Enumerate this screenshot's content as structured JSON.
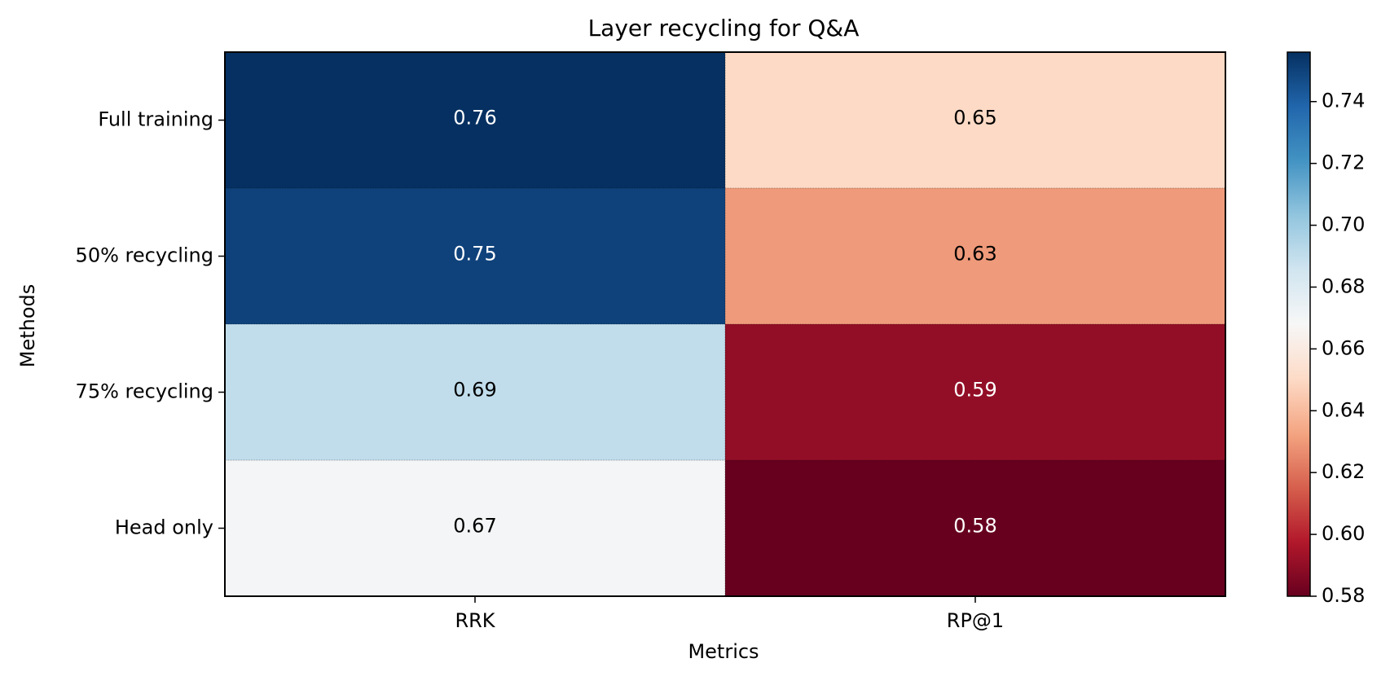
{
  "chart_data": {
    "type": "heatmap",
    "title": "Layer recycling for Q&A",
    "xlabel": "Metrics",
    "ylabel": "Methods",
    "x_categories": [
      "RRK",
      "RP@1"
    ],
    "y_categories": [
      "Full training",
      "50% recycling",
      "75% recycling",
      "Head only"
    ],
    "values": [
      [
        0.76,
        0.65
      ],
      [
        0.75,
        0.63
      ],
      [
        0.69,
        0.59
      ],
      [
        0.67,
        0.58
      ]
    ],
    "value_labels": [
      [
        "0.76",
        "0.65"
      ],
      [
        "0.75",
        "0.63"
      ],
      [
        "0.69",
        "0.59"
      ],
      [
        "0.67",
        "0.58"
      ]
    ],
    "colormap": "RdBu",
    "color_range": [
      0.58,
      0.756
    ],
    "colorbar": {
      "ticks": [
        0.58,
        0.6,
        0.62,
        0.64,
        0.66,
        0.68,
        0.7,
        0.72,
        0.74
      ],
      "tick_labels": [
        "0.58",
        "0.60",
        "0.62",
        "0.64",
        "0.66",
        "0.68",
        "0.70",
        "0.72",
        "0.74"
      ]
    },
    "colors": {
      "text_dark": "#000000",
      "text_light": "#ffffff",
      "axis": "#000000"
    }
  }
}
